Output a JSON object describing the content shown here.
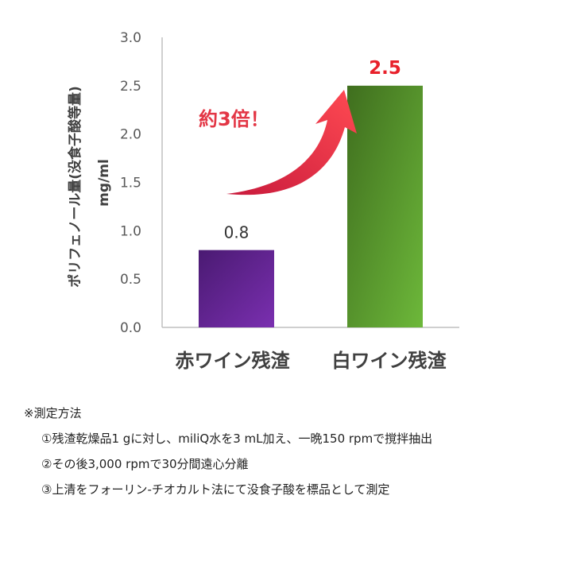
{
  "chart_data": {
    "type": "bar",
    "categories": [
      "赤ワイン残渣",
      "白ワイン残渣"
    ],
    "values": [
      0.8,
      2.5
    ],
    "data_labels": [
      "0.8",
      "2.5"
    ],
    "ylabel": "ポリフェノール量(没食子酸等量)",
    "yunit": "mg/ml",
    "ylim": [
      0,
      3.0
    ],
    "yticks": [
      "0.0",
      "0.5",
      "1.0",
      "1.5",
      "2.0",
      "2.5",
      "3.0"
    ],
    "grid": false,
    "legend": "none",
    "bar_colors": [
      [
        "#4a1a72",
        "#7a2fb0"
      ],
      [
        "#3f6e1e",
        "#6db83a"
      ]
    ],
    "highlight_color": "#e8212b",
    "annotation": "約3倍！",
    "annotation_color": "#e33645"
  },
  "notes": {
    "title": "※測定方法",
    "items": [
      "①残渣乾燥品1 gに対し、miliQ水を3 mL加え、一晩150 rpmで撹拌抽出",
      "②その後3,000 rpmで30分間遠心分離",
      "③上清をフォーリン-チオカルト法にて没食子酸を標品として測定"
    ]
  }
}
